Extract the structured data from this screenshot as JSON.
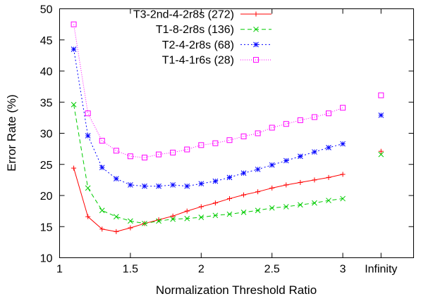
{
  "chart_data": {
    "type": "line",
    "xlabel": "Normalization Threshold Ratio",
    "ylabel": "Error Rate (%)",
    "xlim": [
      1,
      3.5
    ],
    "ylim": [
      10,
      50
    ],
    "x_ticks": [
      {
        "value": 1,
        "label": "1"
      },
      {
        "value": 1.5,
        "label": "1.5"
      },
      {
        "value": 2,
        "label": "2"
      },
      {
        "value": 2.5,
        "label": "2.5"
      },
      {
        "value": 3,
        "label": "3"
      },
      {
        "value": 3.27,
        "label": "Infinity"
      }
    ],
    "y_ticks": [
      10,
      15,
      20,
      25,
      30,
      35,
      40,
      45,
      50
    ],
    "legend_position": "top-center",
    "grid": false,
    "x": [
      1.1,
      1.2,
      1.3,
      1.4,
      1.5,
      1.6,
      1.7,
      1.8,
      1.9,
      2.0,
      2.1,
      2.2,
      2.3,
      2.4,
      2.5,
      2.6,
      2.7,
      2.8,
      2.9,
      3.0
    ],
    "infinity_x": 3.27,
    "series": [
      {
        "name": "T3-2nd-4-2r8s (272)",
        "color": "#ff0000",
        "marker": "plus",
        "dash": "",
        "values": [
          24.4,
          16.6,
          14.6,
          14.2,
          14.8,
          15.5,
          16.1,
          16.7,
          17.5,
          18.2,
          18.8,
          19.5,
          20.1,
          20.6,
          21.2,
          21.7,
          22.1,
          22.5,
          22.9,
          23.4
        ],
        "infinity_value": 27.1
      },
      {
        "name": "T1-8-2r8s (136)",
        "color": "#00cc00",
        "marker": "x",
        "dash": "6,4",
        "values": [
          34.6,
          21.2,
          17.6,
          16.6,
          15.9,
          15.5,
          15.9,
          16.2,
          16.3,
          16.5,
          16.8,
          17.0,
          17.3,
          17.6,
          18.0,
          18.2,
          18.5,
          18.8,
          19.2,
          19.5
        ],
        "infinity_value": 26.6
      },
      {
        "name": "T2-4-2r8s (68)",
        "color": "#0000ff",
        "marker": "star",
        "dash": "2,3",
        "values": [
          43.5,
          29.6,
          24.5,
          22.7,
          21.7,
          21.5,
          21.5,
          21.7,
          21.5,
          21.9,
          22.3,
          22.9,
          23.6,
          24.2,
          24.9,
          25.6,
          26.3,
          27.0,
          27.7,
          28.3
        ],
        "infinity_value": 32.9
      },
      {
        "name": "T1-4-1r6s (28)",
        "color": "#ff00ff",
        "marker": "square",
        "dash": "1,2",
        "values": [
          47.5,
          33.2,
          28.8,
          27.2,
          26.3,
          26.1,
          26.6,
          26.9,
          27.4,
          28.1,
          28.4,
          28.9,
          29.5,
          30.0,
          30.9,
          31.5,
          32.1,
          32.6,
          33.2,
          34.1
        ],
        "infinity_value": 36.1
      }
    ]
  }
}
